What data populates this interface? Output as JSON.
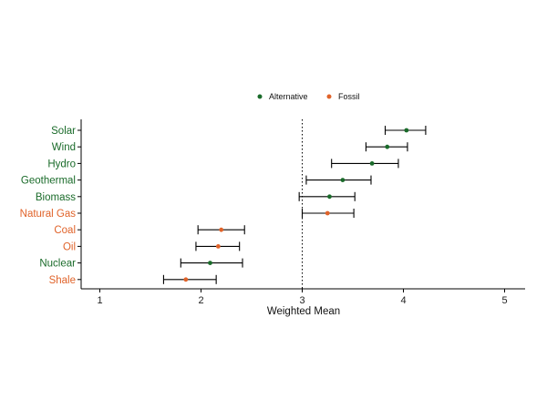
{
  "chart_data": {
    "type": "scatter",
    "subtype": "dot-with-error-bars",
    "title": "",
    "xlabel": "Weighted Mean",
    "ylabel": "",
    "xlim": [
      0.8,
      5.2
    ],
    "xticks": [
      1,
      2,
      3,
      4,
      5
    ],
    "reference_line": {
      "x": 3,
      "style": "dotted"
    },
    "grid": false,
    "legend": {
      "position": "top",
      "entries": [
        {
          "name": "Alternative",
          "color": "#1a6b2a"
        },
        {
          "name": "Fossil",
          "color": "#e0632a"
        }
      ]
    },
    "categories": [
      "Solar",
      "Wind",
      "Hydro",
      "Geothermal",
      "Biomass",
      "Natural Gas",
      "Coal",
      "Oil",
      "Nuclear",
      "Shale"
    ],
    "series": [
      {
        "name": "Alternative",
        "color": "#1a6b2a",
        "points": [
          {
            "category": "Solar",
            "value": 4.03,
            "low": 3.82,
            "high": 4.22
          },
          {
            "category": "Wind",
            "value": 3.84,
            "low": 3.63,
            "high": 4.04
          },
          {
            "category": "Hydro",
            "value": 3.69,
            "low": 3.29,
            "high": 3.95
          },
          {
            "category": "Geothermal",
            "value": 3.4,
            "low": 3.04,
            "high": 3.68
          },
          {
            "category": "Biomass",
            "value": 3.27,
            "low": 2.97,
            "high": 3.52
          },
          {
            "category": "Nuclear",
            "value": 2.09,
            "low": 1.8,
            "high": 2.41
          }
        ]
      },
      {
        "name": "Fossil",
        "color": "#e0632a",
        "points": [
          {
            "category": "Natural Gas",
            "value": 3.25,
            "low": 3.0,
            "high": 3.51
          },
          {
            "category": "Coal",
            "value": 2.2,
            "low": 1.97,
            "high": 2.43
          },
          {
            "category": "Oil",
            "value": 2.17,
            "low": 1.95,
            "high": 2.38
          },
          {
            "category": "Shale",
            "value": 1.85,
            "low": 1.63,
            "high": 2.15
          }
        ]
      }
    ]
  }
}
